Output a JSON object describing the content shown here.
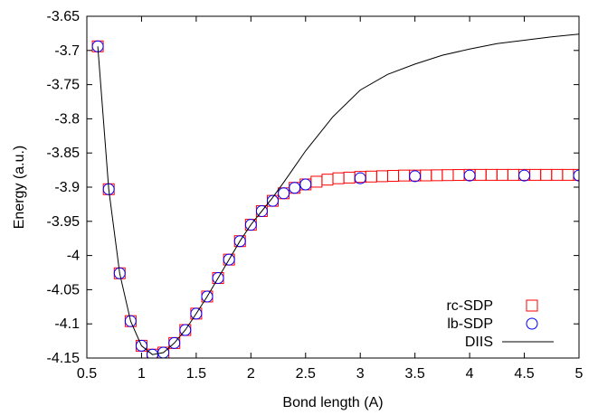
{
  "chart_data": {
    "type": "line",
    "title": "",
    "xlabel": "Bond length (A)",
    "ylabel": "Energy (a.u.)",
    "xlim": [
      0.5,
      5
    ],
    "ylim": [
      -4.15,
      -3.65
    ],
    "xticks": [
      0.5,
      1,
      1.5,
      2,
      2.5,
      3,
      3.5,
      4,
      4.5,
      5
    ],
    "xtick_labels": [
      "0.5",
      "1",
      "1.5",
      "2",
      "2.5",
      "3",
      "3.5",
      "4",
      "4.5",
      "5"
    ],
    "yticks": [
      -4.15,
      -4.1,
      -4.05,
      -4,
      -3.95,
      -3.9,
      -3.85,
      -3.8,
      -3.75,
      -3.7,
      -3.65
    ],
    "ytick_labels": [
      "-4.15",
      "-4.1",
      "-4.05",
      "-4",
      "-3.95",
      "-3.9",
      "-3.85",
      "-3.8",
      "-3.75",
      "-3.7",
      "-3.65"
    ],
    "grid": false,
    "legend_position": "bottom-right",
    "series": [
      {
        "name": "rc-SDP",
        "marker": "square",
        "color": "#ff0000",
        "x": [
          0.6,
          0.7,
          0.8,
          0.9,
          1.0,
          1.1,
          1.2,
          1.3,
          1.4,
          1.5,
          1.6,
          1.7,
          1.8,
          1.9,
          2.0,
          2.1,
          2.2,
          2.3,
          2.4,
          2.5,
          2.6,
          2.7,
          2.8,
          2.9,
          3.0,
          3.1,
          3.2,
          3.3,
          3.4,
          3.5,
          3.6,
          3.7,
          3.8,
          3.9,
          4.0,
          4.1,
          4.2,
          4.3,
          4.4,
          4.5,
          4.6,
          4.7,
          4.8,
          4.9,
          5.0
        ],
        "y": [
          -3.694,
          -3.903,
          -4.026,
          -4.096,
          -4.132,
          -4.145,
          -4.142,
          -4.128,
          -4.109,
          -4.085,
          -4.06,
          -4.033,
          -4.006,
          -3.979,
          -3.955,
          -3.935,
          -3.92,
          -3.909,
          -3.901,
          -3.896,
          -3.892,
          -3.889,
          -3.887,
          -3.886,
          -3.885,
          -3.8845,
          -3.884,
          -3.8835,
          -3.883,
          -3.883,
          -3.8828,
          -3.8826,
          -3.8824,
          -3.8822,
          -3.882,
          -3.882,
          -3.882,
          -3.882,
          -3.882,
          -3.882,
          -3.882,
          -3.882,
          -3.882,
          -3.882,
          -3.882
        ]
      },
      {
        "name": "lb-SDP",
        "marker": "circle",
        "color": "#0000ff",
        "x": [
          0.6,
          0.7,
          0.8,
          0.9,
          1.0,
          1.1,
          1.2,
          1.3,
          1.4,
          1.5,
          1.6,
          1.7,
          1.8,
          1.9,
          2.0,
          2.1,
          2.2,
          2.3,
          2.4,
          2.5,
          3.0,
          3.5,
          4.0,
          4.5,
          5.0
        ],
        "y": [
          -3.694,
          -3.903,
          -4.026,
          -4.096,
          -4.132,
          -4.145,
          -4.142,
          -4.128,
          -4.109,
          -4.085,
          -4.06,
          -4.033,
          -4.006,
          -3.979,
          -3.955,
          -3.935,
          -3.92,
          -3.909,
          -3.901,
          -3.896,
          -3.887,
          -3.884,
          -3.883,
          -3.883,
          -3.883
        ]
      },
      {
        "name": "DIIS",
        "marker": "line",
        "color": "#000000",
        "x": [
          0.6,
          0.7,
          0.8,
          0.9,
          1.0,
          1.1,
          1.2,
          1.3,
          1.4,
          1.5,
          1.6,
          1.7,
          1.8,
          1.9,
          2.0,
          2.1,
          2.2,
          2.3,
          2.4,
          2.5,
          2.75,
          3.0,
          3.25,
          3.5,
          3.75,
          4.0,
          4.25,
          4.5,
          4.75,
          5.0
        ],
        "y": [
          -3.694,
          -3.903,
          -4.026,
          -4.096,
          -4.132,
          -4.145,
          -4.142,
          -4.128,
          -4.109,
          -4.085,
          -4.06,
          -4.033,
          -4.006,
          -3.979,
          -3.955,
          -3.935,
          -3.915,
          -3.893,
          -3.87,
          -3.847,
          -3.797,
          -3.758,
          -3.735,
          -3.72,
          -3.707,
          -3.698,
          -3.69,
          -3.685,
          -3.68,
          -3.676
        ]
      }
    ]
  }
}
